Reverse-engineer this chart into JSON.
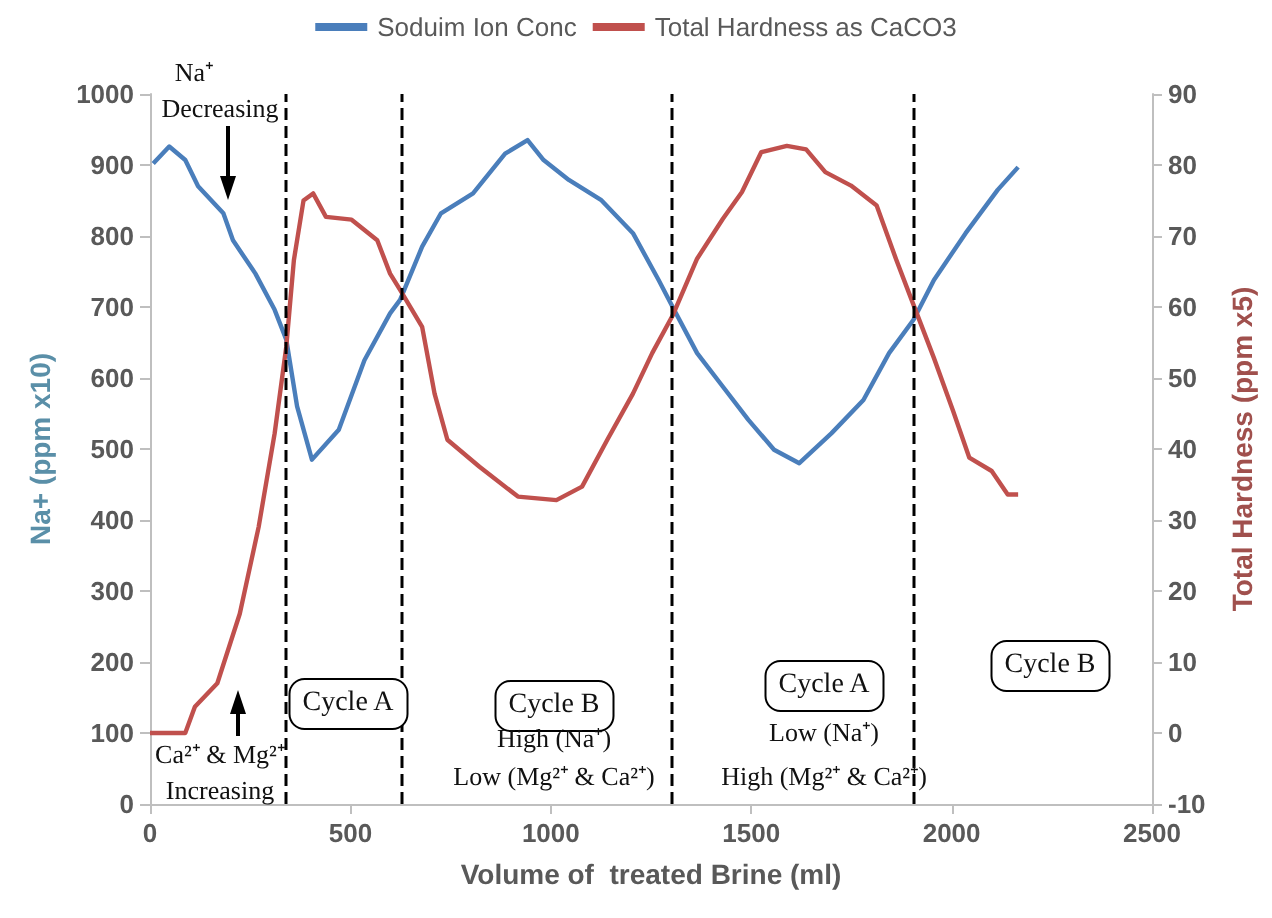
{
  "chart_data": {
    "type": "line",
    "xlabel": "Volume of  treated Brine (ml)",
    "ylabel": "Na+ (ppm x10)",
    "y2label": "Total Hardness (ppm x5)",
    "xlim": [
      0,
      2500
    ],
    "xticks": [
      0,
      500,
      1000,
      1500,
      2000,
      2500
    ],
    "ylim": [
      0,
      1000
    ],
    "yticks": [
      0,
      100,
      200,
      300,
      400,
      500,
      600,
      700,
      800,
      900,
      1000
    ],
    "y2lim": [
      -10,
      90
    ],
    "y2ticks": [
      -10,
      0,
      10,
      20,
      30,
      40,
      50,
      60,
      70,
      80,
      90
    ],
    "legend": "top",
    "grid": false,
    "marker": "none",
    "line_style": "solid",
    "series": [
      {
        "name": "Soduim Ion Conc",
        "color": "#4a7ebb",
        "x": [
          8,
          48,
          88,
          120,
          183,
          207,
          263,
          311,
          340,
          367,
          404,
          471,
          535,
          599,
          624,
          679,
          726,
          806,
          886,
          942,
          982,
          1045,
          1125,
          1205,
          1269,
          1304,
          1365,
          1429,
          1493,
          1557,
          1620,
          1700,
          1780,
          1844,
          1905,
          1956,
          2035,
          2115,
          2166
        ],
        "values": [
          902,
          926,
          907,
          870,
          832,
          794,
          747,
          696,
          654,
          560,
          485,
          527,
          625,
          691,
          710,
          785,
          832,
          860,
          916,
          935,
          907,
          879,
          851,
          804,
          738,
          700,
          635,
          588,
          541,
          499,
          480,
          522,
          569,
          635,
          682,
          738,
          804,
          865,
          897
        ]
      },
      {
        "name": "Total Hardness as CaCO3",
        "color": "#c0504d",
        "axis": "y2",
        "x": [
          0,
          88,
          112,
          168,
          224,
          271,
          311,
          340,
          359,
          383,
          407,
          439,
          503,
          567,
          599,
          624,
          679,
          710,
          742,
          822,
          918,
          1014,
          1078,
          1141,
          1205,
          1253,
          1304,
          1365,
          1429,
          1477,
          1525,
          1589,
          1637,
          1685,
          1749,
          1813,
          1861,
          1905,
          1956,
          2004,
          2044,
          2100,
          2140,
          2166
        ],
        "values": [
          0,
          0,
          3.7,
          7,
          16.8,
          29,
          42.2,
          54.4,
          66.6,
          75,
          76,
          72.7,
          72.3,
          69.4,
          64.7,
          62.4,
          57.2,
          47.8,
          41.3,
          37.5,
          33.3,
          32.8,
          34.7,
          41.3,
          47.8,
          53.5,
          58.8,
          66.8,
          72.4,
          76.2,
          81.8,
          82.7,
          82.2,
          79,
          77.1,
          74.3,
          66.8,
          60.3,
          52.8,
          45.3,
          38.8,
          36.9,
          33.6,
          33.6
        ]
      }
    ],
    "ref_lines": [
      {
        "axis": "x",
        "value": 340,
        "color": "#000000",
        "line_style": "dashed"
      },
      {
        "axis": "x",
        "value": 625,
        "color": "#000000",
        "line_style": "dashed"
      },
      {
        "axis": "x",
        "value": 1300,
        "color": "#000000",
        "line_style": "dashed"
      },
      {
        "axis": "x",
        "value": 1905,
        "color": "#000000",
        "line_style": "dashed"
      }
    ],
    "annotations": [
      "Na⁺",
      "Decreasing",
      "Ca²⁺ & Mg²⁺",
      "Increasing",
      "Cycle A",
      "Cycle B",
      "High (Na⁺)",
      "Low (Mg²⁺ & Ca²⁺)",
      "Cycle A",
      "Low (Na⁺)",
      "High (Mg²⁺ & Ca²⁺)",
      "Cycle B"
    ]
  }
}
